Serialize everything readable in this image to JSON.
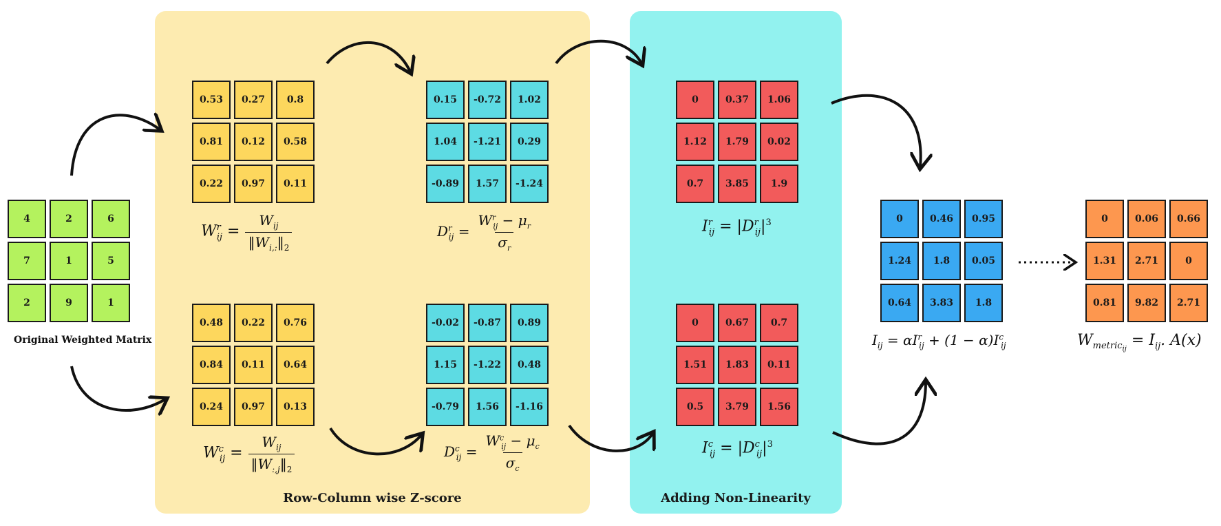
{
  "colors": {
    "zscore_panel": "#fdebb0",
    "nonlin_panel": "#92f2ef",
    "green": "#b4f25e",
    "yellow": "#fdd75d",
    "cyan": "#5ddbe3",
    "red": "#f25b5b",
    "blue": "#3aa9f2",
    "orange": "#fd974f"
  },
  "panels": {
    "zscore_label": "Row-Column wise Z-score",
    "nonlin_label": "Adding Non-Linearity"
  },
  "original": {
    "caption": "Original Weighted Matrix",
    "cells": [
      "4",
      "2",
      "6",
      "7",
      "1",
      "5",
      "2",
      "9",
      "1"
    ]
  },
  "wr": {
    "cells": [
      "0.53",
      "0.27",
      "0.8",
      "0.81",
      "0.12",
      "0.58",
      "0.22",
      "0.97",
      "0.11"
    ]
  },
  "wc": {
    "cells": [
      "0.48",
      "0.22",
      "0.76",
      "0.84",
      "0.11",
      "0.64",
      "0.24",
      "0.97",
      "0.13"
    ]
  },
  "dr": {
    "cells": [
      "0.15",
      "-0.72",
      "1.02",
      "1.04",
      "-1.21",
      "0.29",
      "-0.89",
      "1.57",
      "-1.24"
    ]
  },
  "dc": {
    "cells": [
      "-0.02",
      "-0.87",
      "0.89",
      "1.15",
      "-1.22",
      "0.48",
      "-0.79",
      "1.56",
      "-1.16"
    ]
  },
  "ir": {
    "cells": [
      "0",
      "0.37",
      "1.06",
      "1.12",
      "1.79",
      "0.02",
      "0.7",
      "3.85",
      "1.9"
    ]
  },
  "ic": {
    "cells": [
      "0",
      "0.67",
      "0.7",
      "1.51",
      "1.83",
      "0.11",
      "0.5",
      "3.79",
      "1.56"
    ]
  },
  "combined": {
    "cells": [
      "0",
      "0.46",
      "0.95",
      "1.24",
      "1.8",
      "0.05",
      "0.64",
      "3.83",
      "1.8"
    ]
  },
  "metric": {
    "cells": [
      "0",
      "0.06",
      "0.66",
      "1.31",
      "2.71",
      "0",
      "0.81",
      "9.82",
      "2.71"
    ]
  }
}
